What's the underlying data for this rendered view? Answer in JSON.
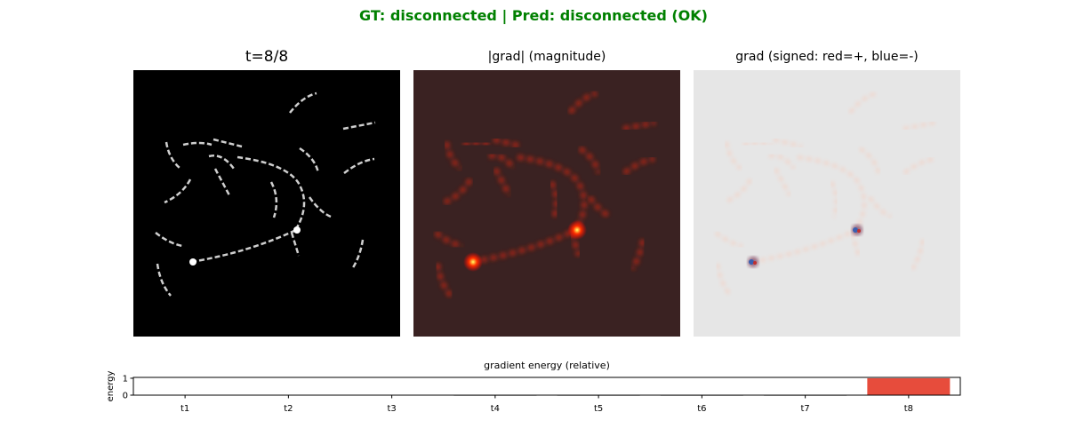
{
  "suptitle": "GT: disconnected | Pred: disconnected (OK)",
  "colors": {
    "suptitle": "#008000",
    "bar_default": "#333333",
    "bar_highlight": "#e74c3c"
  },
  "panels": [
    {
      "title": "t=8/8",
      "type": "image",
      "colormap": "gray"
    },
    {
      "title": "|grad| (magnitude)",
      "type": "image",
      "colormap": "hot"
    },
    {
      "title": "grad (signed: red=+, blue=-)",
      "type": "image",
      "colormap": "bwr"
    }
  ],
  "chart_data": {
    "type": "bar",
    "title": "gradient energy (relative)",
    "xlabel": "",
    "ylabel": "energy",
    "categories": [
      "t1",
      "t2",
      "t3",
      "t4",
      "t5",
      "t6",
      "t7",
      "t8"
    ],
    "values": [
      0.0,
      0.0,
      0.0,
      0.02,
      0.02,
      0.02,
      0.02,
      1.0
    ],
    "highlight_index": 7,
    "yticks": [
      0,
      1
    ],
    "ylim": [
      0,
      1.05
    ],
    "grid": false
  }
}
